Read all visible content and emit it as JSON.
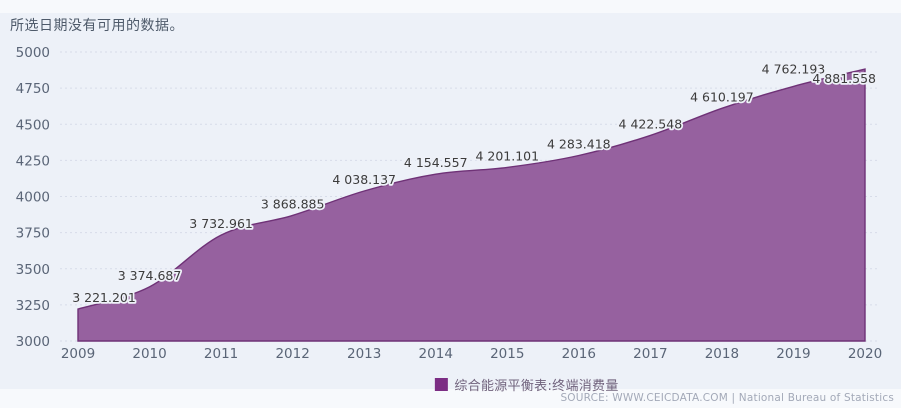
{
  "page": {
    "notice": "所选日期没有可用的数据。",
    "source": "SOURCE: WWW.CEICDATA.COM | National Bureau of Statistics"
  },
  "legend": {
    "swatch_color": "#7c2d84",
    "label": "综合能源平衡表:终端消费量"
  },
  "chart_data": {
    "type": "area",
    "title": "",
    "categories": [
      "2009",
      "2010",
      "2011",
      "2012",
      "2013",
      "2014",
      "2015",
      "2016",
      "2017",
      "2018",
      "2019",
      "2020"
    ],
    "series": [
      {
        "name": "综合能源平衡表:终端消费量",
        "values": [
          3221.201,
          3374.687,
          3732.961,
          3868.885,
          4038.137,
          4154.557,
          4201.101,
          4283.418,
          4422.548,
          4610.197,
          4762.193,
          4881.558
        ]
      }
    ],
    "point_labels": [
      "3 221.201",
      "3 374.687",
      "3 732.961",
      "3 868.885",
      "4 038.137",
      "4 154.557",
      "4 201.101",
      "4 283.418",
      "4 422.548",
      "4 610.197",
      "4 762.193",
      "4 881.558"
    ],
    "xlabel": "",
    "ylabel": "",
    "ylim": [
      3000,
      5000
    ],
    "yticks": [
      3000,
      3250,
      3500,
      3750,
      4000,
      4250,
      4500,
      4750,
      5000
    ],
    "grid": "horizontal-dashed",
    "legend_position": "bottom-center",
    "colors": {
      "area_fill": "#96619f",
      "area_edge": "#6f3277",
      "grid_line": "#d7dce9",
      "axis_text": "#5a6577",
      "label_text": "#3c3c3c",
      "label_halo": "#eef1f8",
      "background": "#edf1f8"
    }
  }
}
